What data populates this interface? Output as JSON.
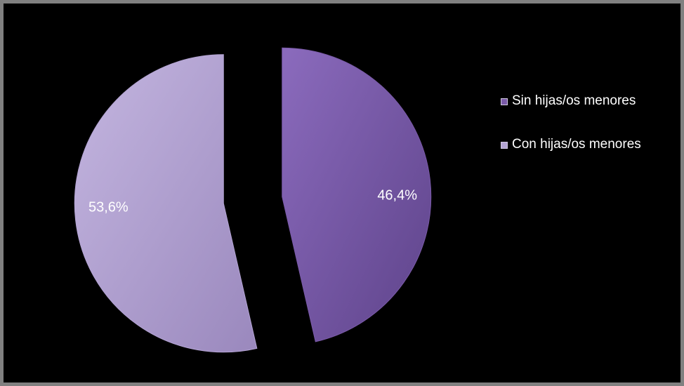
{
  "chart_data": {
    "type": "pie",
    "exploded": true,
    "categories": [
      "Sin hijas/os menores",
      "Con hijas/os menores"
    ],
    "values": [
      46.4,
      53.6
    ],
    "value_labels": [
      "46,4%",
      "53,6%"
    ],
    "colors": [
      "#7a5aa8",
      "#b4a4d4"
    ],
    "legend_position": "right",
    "title": ""
  }
}
